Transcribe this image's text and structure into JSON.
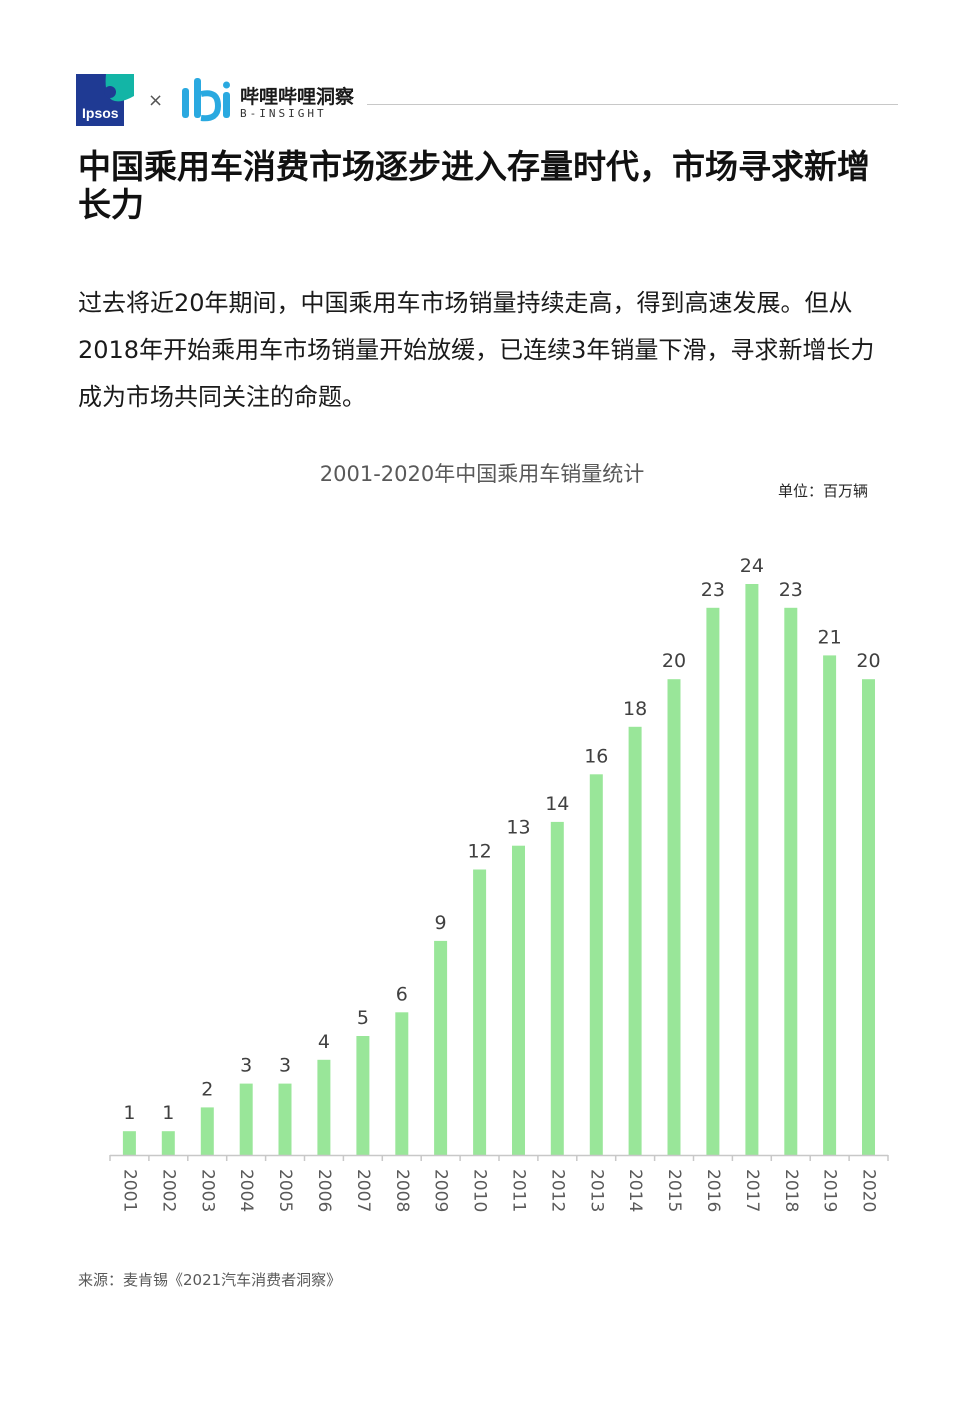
{
  "header": {
    "ipsos_logo_text": "Ipsos",
    "times": "×",
    "brand_cn": "哔哩哔哩洞察",
    "brand_en": "B-INSIGHT",
    "brand_icon": "bilibili-b-icon",
    "colors": {
      "ipsos_navy": "#1f3a93",
      "ipsos_teal": "#13b5a6",
      "bilibili_blue": "#2aa9e0"
    }
  },
  "page": {
    "title": "中国乘用车消费市场逐步进入存量时代，市场寻求新增长力",
    "intro": "过去将近20年期间，中国乘用车市场销量持续走高，得到高速发展。但从2018年开始乘用车市场销量开始放缓，已连续3年销量下滑，寻求新增长力成为市场共同关注的命题。",
    "source": "来源：麦肯锡《2021汽车消费者洞察》"
  },
  "chart_data": {
    "type": "bar",
    "title": "2001-2020年中国乘用车销量统计",
    "unit": "单位：百万辆",
    "xlabel": "",
    "ylabel": "",
    "categories": [
      "2001",
      "2002",
      "2003",
      "2004",
      "2005",
      "2006",
      "2007",
      "2008",
      "2009",
      "2010",
      "2011",
      "2012",
      "2013",
      "2014",
      "2015",
      "2016",
      "2017",
      "2018",
      "2019",
      "2020"
    ],
    "values": [
      1,
      1,
      2,
      3,
      3,
      4,
      5,
      6,
      9,
      12,
      13,
      14,
      16,
      18,
      20,
      23,
      24,
      23,
      21,
      20
    ],
    "ylim": [
      0,
      24
    ],
    "bar_color": "#99e699",
    "axis_color": "#c8c8c8",
    "grid": false,
    "legend": false,
    "x_tick_rotation": "vertical"
  }
}
